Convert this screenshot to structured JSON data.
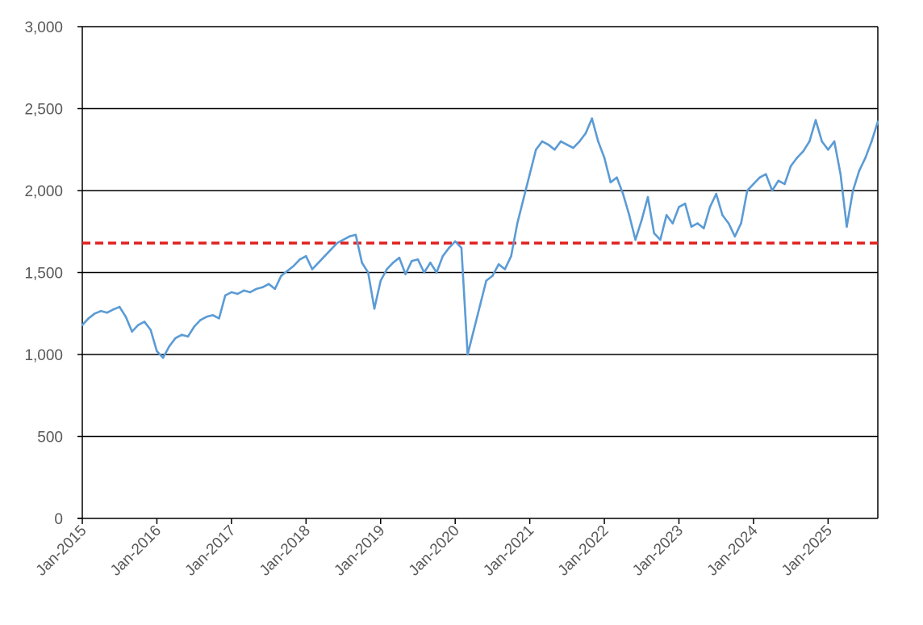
{
  "chart_data": {
    "type": "line",
    "title": "",
    "xlabel": "",
    "ylabel": "",
    "ylim": [
      0,
      3000
    ],
    "yticks": [
      0,
      500,
      1000,
      1500,
      2000,
      2500,
      3000
    ],
    "ytick_labels": [
      "0",
      "500",
      "1,000",
      "1,500",
      "2,000",
      "2,500",
      "3,000"
    ],
    "xlim": [
      "2015-01",
      "2025-09"
    ],
    "xtick_labels": [
      "Jan-2015",
      "Jan-2016",
      "Jan-2017",
      "Jan-2018",
      "Jan-2019",
      "Jan-2020",
      "Jan-2021",
      "Jan-2022",
      "Jan-2023",
      "Jan-2024",
      "Jan-2025"
    ],
    "grid": "horizontal",
    "legend": "none",
    "reference_line": {
      "value": 1680,
      "color": "#e02020",
      "style": "dashed"
    },
    "series": [
      {
        "color": "#5b9bd5",
        "points": [
          [
            "2015-01",
            1180
          ],
          [
            "2015-02",
            1220
          ],
          [
            "2015-03",
            1250
          ],
          [
            "2015-04",
            1265
          ],
          [
            "2015-05",
            1255
          ],
          [
            "2015-06",
            1275
          ],
          [
            "2015-07",
            1290
          ],
          [
            "2015-08",
            1230
          ],
          [
            "2015-09",
            1140
          ],
          [
            "2015-10",
            1180
          ],
          [
            "2015-11",
            1200
          ],
          [
            "2015-12",
            1150
          ],
          [
            "2016-01",
            1020
          ],
          [
            "2016-02",
            980
          ],
          [
            "2016-03",
            1050
          ],
          [
            "2016-04",
            1100
          ],
          [
            "2016-05",
            1120
          ],
          [
            "2016-06",
            1110
          ],
          [
            "2016-07",
            1170
          ],
          [
            "2016-08",
            1210
          ],
          [
            "2016-09",
            1230
          ],
          [
            "2016-10",
            1240
          ],
          [
            "2016-11",
            1220
          ],
          [
            "2016-12",
            1360
          ],
          [
            "2017-01",
            1380
          ],
          [
            "2017-02",
            1370
          ],
          [
            "2017-03",
            1390
          ],
          [
            "2017-04",
            1380
          ],
          [
            "2017-05",
            1400
          ],
          [
            "2017-06",
            1410
          ],
          [
            "2017-07",
            1430
          ],
          [
            "2017-08",
            1400
          ],
          [
            "2017-09",
            1480
          ],
          [
            "2017-10",
            1510
          ],
          [
            "2017-11",
            1540
          ],
          [
            "2017-12",
            1580
          ],
          [
            "2018-01",
            1600
          ],
          [
            "2018-02",
            1520
          ],
          [
            "2018-03",
            1560
          ],
          [
            "2018-04",
            1600
          ],
          [
            "2018-05",
            1640
          ],
          [
            "2018-06",
            1680
          ],
          [
            "2018-07",
            1700
          ],
          [
            "2018-08",
            1720
          ],
          [
            "2018-09",
            1730
          ],
          [
            "2018-10",
            1560
          ],
          [
            "2018-11",
            1500
          ],
          [
            "2018-12",
            1280
          ],
          [
            "2019-01",
            1450
          ],
          [
            "2019-02",
            1520
          ],
          [
            "2019-03",
            1560
          ],
          [
            "2019-04",
            1590
          ],
          [
            "2019-05",
            1490
          ],
          [
            "2019-06",
            1570
          ],
          [
            "2019-07",
            1580
          ],
          [
            "2019-08",
            1500
          ],
          [
            "2019-09",
            1560
          ],
          [
            "2019-10",
            1500
          ],
          [
            "2019-11",
            1600
          ],
          [
            "2019-12",
            1650
          ],
          [
            "2020-01",
            1690
          ],
          [
            "2020-02",
            1650
          ],
          [
            "2020-03",
            1000
          ],
          [
            "2020-04",
            1150
          ],
          [
            "2020-05",
            1300
          ],
          [
            "2020-06",
            1450
          ],
          [
            "2020-07",
            1480
          ],
          [
            "2020-08",
            1550
          ],
          [
            "2020-09",
            1520
          ],
          [
            "2020-10",
            1600
          ],
          [
            "2020-11",
            1800
          ],
          [
            "2020-12",
            1950
          ],
          [
            "2021-01",
            2100
          ],
          [
            "2021-02",
            2250
          ],
          [
            "2021-03",
            2300
          ],
          [
            "2021-04",
            2280
          ],
          [
            "2021-05",
            2250
          ],
          [
            "2021-06",
            2300
          ],
          [
            "2021-07",
            2280
          ],
          [
            "2021-08",
            2260
          ],
          [
            "2021-09",
            2300
          ],
          [
            "2021-10",
            2350
          ],
          [
            "2021-11",
            2440
          ],
          [
            "2021-12",
            2300
          ],
          [
            "2022-01",
            2200
          ],
          [
            "2022-02",
            2050
          ],
          [
            "2022-03",
            2080
          ],
          [
            "2022-04",
            1980
          ],
          [
            "2022-05",
            1850
          ],
          [
            "2022-06",
            1700
          ],
          [
            "2022-07",
            1820
          ],
          [
            "2022-08",
            1960
          ],
          [
            "2022-09",
            1740
          ],
          [
            "2022-10",
            1700
          ],
          [
            "2022-11",
            1850
          ],
          [
            "2022-12",
            1800
          ],
          [
            "2023-01",
            1900
          ],
          [
            "2023-02",
            1920
          ],
          [
            "2023-03",
            1780
          ],
          [
            "2023-04",
            1800
          ],
          [
            "2023-05",
            1770
          ],
          [
            "2023-06",
            1900
          ],
          [
            "2023-07",
            1980
          ],
          [
            "2023-08",
            1850
          ],
          [
            "2023-09",
            1800
          ],
          [
            "2023-10",
            1720
          ],
          [
            "2023-11",
            1800
          ],
          [
            "2023-12",
            2000
          ],
          [
            "2024-01",
            2040
          ],
          [
            "2024-02",
            2080
          ],
          [
            "2024-03",
            2100
          ],
          [
            "2024-04",
            2000
          ],
          [
            "2024-05",
            2060
          ],
          [
            "2024-06",
            2040
          ],
          [
            "2024-07",
            2150
          ],
          [
            "2024-08",
            2200
          ],
          [
            "2024-09",
            2240
          ],
          [
            "2024-10",
            2300
          ],
          [
            "2024-11",
            2430
          ],
          [
            "2024-12",
            2300
          ],
          [
            "2025-01",
            2250
          ],
          [
            "2025-02",
            2300
          ],
          [
            "2025-03",
            2100
          ],
          [
            "2025-04",
            1780
          ],
          [
            "2025-05",
            2000
          ],
          [
            "2025-06",
            2120
          ],
          [
            "2025-07",
            2200
          ],
          [
            "2025-08",
            2300
          ],
          [
            "2025-09",
            2420
          ]
        ]
      }
    ]
  }
}
